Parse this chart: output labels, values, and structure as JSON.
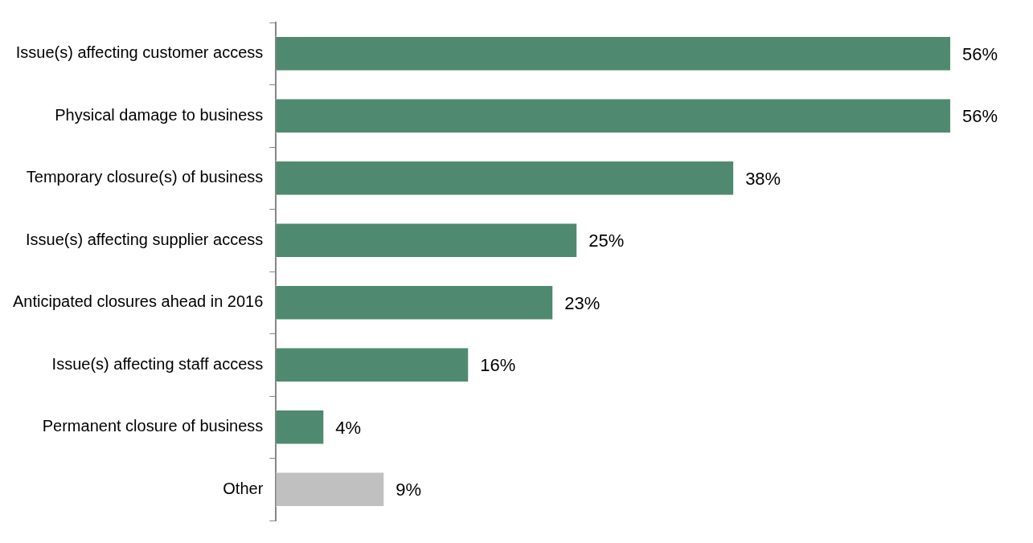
{
  "chart_data": {
    "type": "bar",
    "orientation": "horizontal",
    "categories": [
      "Issue(s) affecting customer access",
      "Physical damage to business",
      "Temporary closure(s) of business",
      "Issue(s) affecting supplier access",
      "Anticipated closures ahead in 2016",
      "Issue(s) affecting staff access",
      "Permanent closure of business",
      "Other"
    ],
    "values": [
      56,
      56,
      38,
      25,
      23,
      16,
      4,
      9
    ],
    "value_labels": [
      "56%",
      "56%",
      "38%",
      "25%",
      "23%",
      "16%",
      "4%",
      "9%"
    ],
    "colors": [
      "#4f8a70",
      "#4f8a70",
      "#4f8a70",
      "#4f8a70",
      "#4f8a70",
      "#4f8a70",
      "#4f8a70",
      "#c0c0c0"
    ],
    "legend": false
  }
}
